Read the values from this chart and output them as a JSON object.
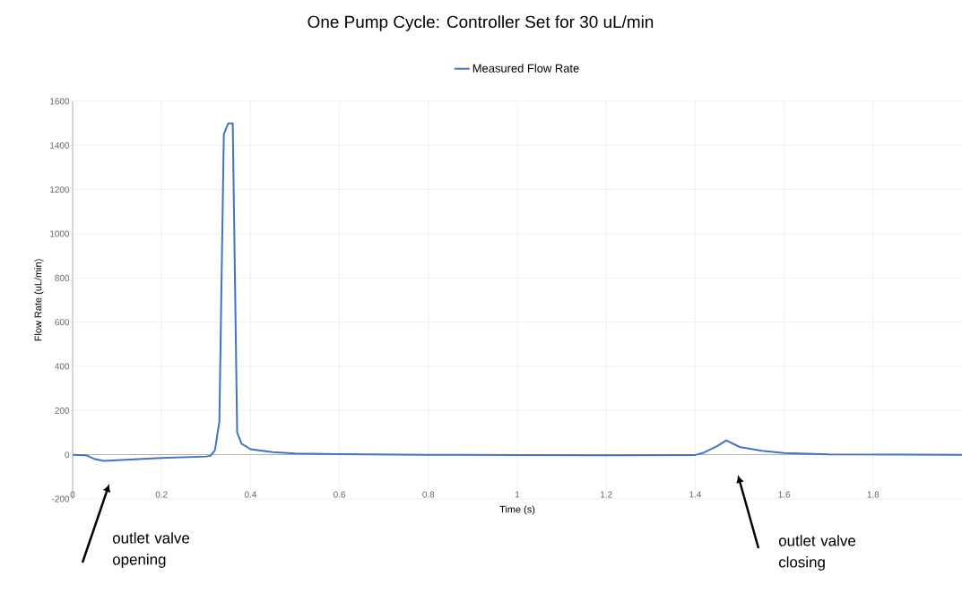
{
  "chart_data": {
    "type": "line",
    "title": "One Pump Cycle: Controller Set for 30 uL/min",
    "xlabel": "Time (s)",
    "ylabel": "Flow Rate (uL/min)",
    "series": [
      {
        "name": "Measured Flow Rate",
        "color": "#4472c4",
        "x": [
          0,
          0.03,
          0.05,
          0.07,
          0.1,
          0.2,
          0.3,
          0.31,
          0.32,
          0.33,
          0.335,
          0.34,
          0.35,
          0.36,
          0.365,
          0.37,
          0.38,
          0.4,
          0.45,
          0.5,
          0.6,
          0.8,
          1.2,
          1.4,
          1.42,
          1.45,
          1.47,
          1.5,
          1.55,
          1.6,
          1.7,
          2
        ],
        "values": [
          0,
          -2,
          -20,
          -28,
          -25,
          -15,
          -8,
          -5,
          20,
          150,
          800,
          1450,
          1500,
          1500,
          800,
          100,
          50,
          25,
          12,
          6,
          3,
          0,
          -2,
          -1,
          10,
          40,
          65,
          35,
          18,
          8,
          2,
          0
        ]
      }
    ],
    "xlim": [
      0,
      2
    ],
    "ylim": [
      -200,
      1600
    ],
    "xticks": [
      0,
      0.2,
      0.4,
      0.6,
      0.8,
      1,
      1.2,
      1.4,
      1.6,
      1.8
    ],
    "yticks": [
      -200,
      0,
      200,
      400,
      600,
      800,
      1000,
      1200,
      1400,
      1600
    ],
    "grid": true,
    "legend": "top",
    "marker": "none",
    "line_style": "solid",
    "annotations": [
      "outlet valve opening",
      "outlet valve closing"
    ]
  }
}
